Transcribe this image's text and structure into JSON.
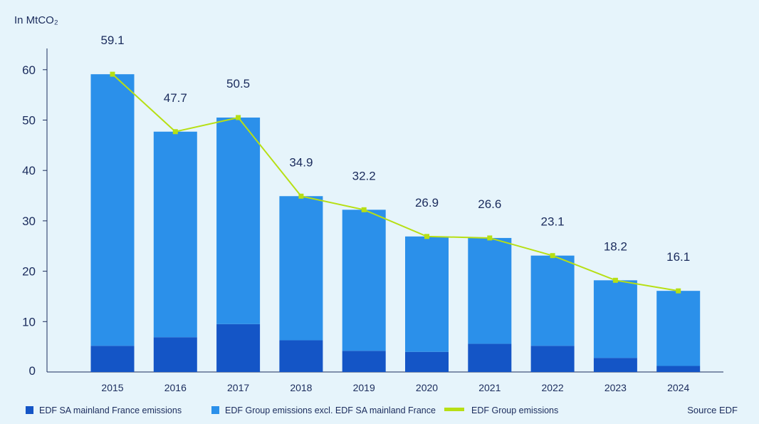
{
  "chart_data": {
    "type": "bar",
    "stacked": true,
    "unit_label": "In MtCO₂",
    "categories": [
      "2015",
      "2016",
      "2017",
      "2018",
      "2019",
      "2020",
      "2021",
      "2022",
      "2023",
      "2024"
    ],
    "yticks": [
      0,
      10,
      20,
      30,
      40,
      50,
      60
    ],
    "ylim": [
      0,
      65
    ],
    "series": [
      {
        "name": "EDF SA mainland France emissions",
        "kind": "bar",
        "color": "#1455c6",
        "values": [
          5.2,
          6.9,
          9.5,
          6.3,
          4.2,
          4.0,
          5.6,
          5.2,
          2.8,
          1.2
        ]
      },
      {
        "name": "EDF Group emissions excl. EDF SA mainland France",
        "kind": "bar",
        "color": "#2b90ea",
        "values": [
          53.9,
          40.8,
          41.0,
          28.6,
          28.0,
          22.9,
          21.0,
          17.9,
          15.4,
          14.9
        ]
      },
      {
        "name": "EDF Group emissions",
        "kind": "line",
        "color": "#b7df14",
        "values": [
          59.1,
          47.7,
          50.5,
          34.9,
          32.2,
          26.9,
          26.6,
          23.1,
          18.2,
          16.1
        ]
      }
    ],
    "total_labels": [
      "59.1",
      "47.7",
      "50.5",
      "34.9",
      "32.2",
      "26.9",
      "26.6",
      "23.1",
      "18.2",
      "16.1"
    ],
    "legend_position": "bottom",
    "source": "Source EDF"
  }
}
